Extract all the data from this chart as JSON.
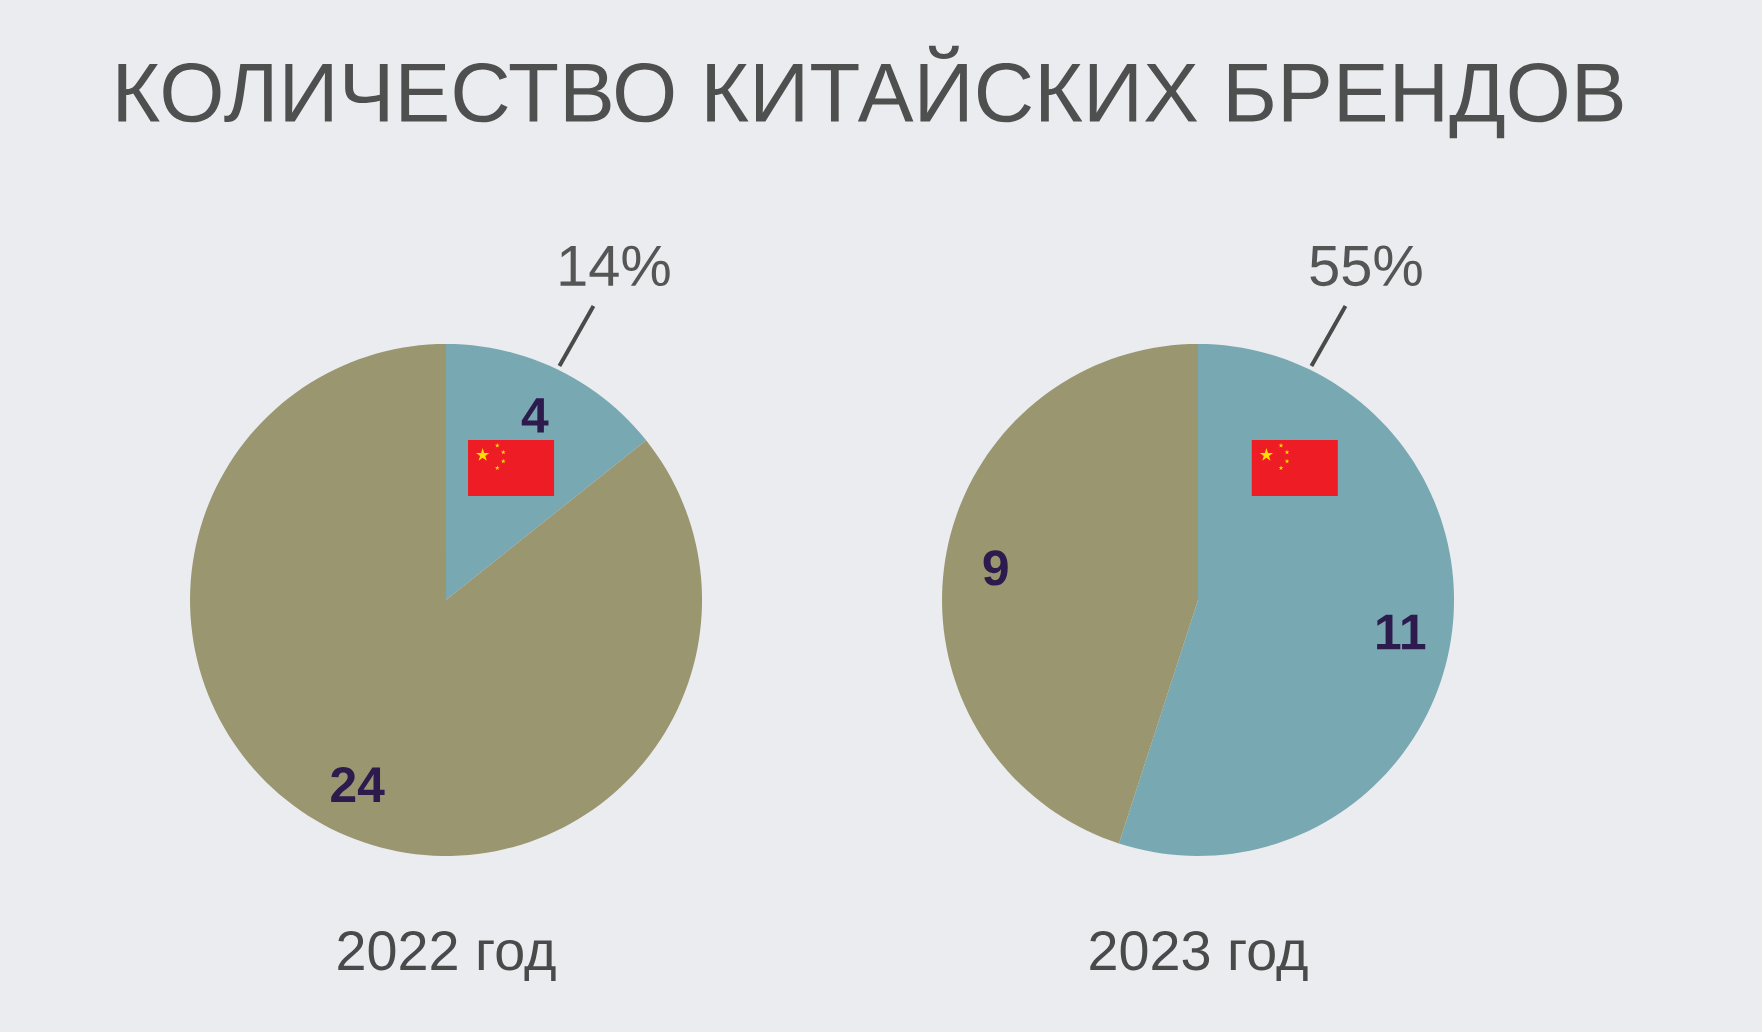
{
  "chart_data": [
    {
      "type": "pie",
      "title": "КОЛИЧЕСТВО КИТАЙСКИХ БРЕНДОВ",
      "xlabel": "2022 год",
      "categories": [
        null,
        null
      ],
      "values": [
        4,
        24
      ],
      "colors": [
        "#78a8b2",
        "#9a9670"
      ],
      "data_labels": true,
      "annotations": [
        "14%"
      ]
    },
    {
      "type": "pie",
      "xlabel": "2023 год",
      "categories": [
        null,
        null
      ],
      "values": [
        11,
        9
      ],
      "colors": [
        "#78a8b2",
        "#9a9670"
      ],
      "data_labels": true,
      "annotations": [
        "55%"
      ]
    }
  ]
}
